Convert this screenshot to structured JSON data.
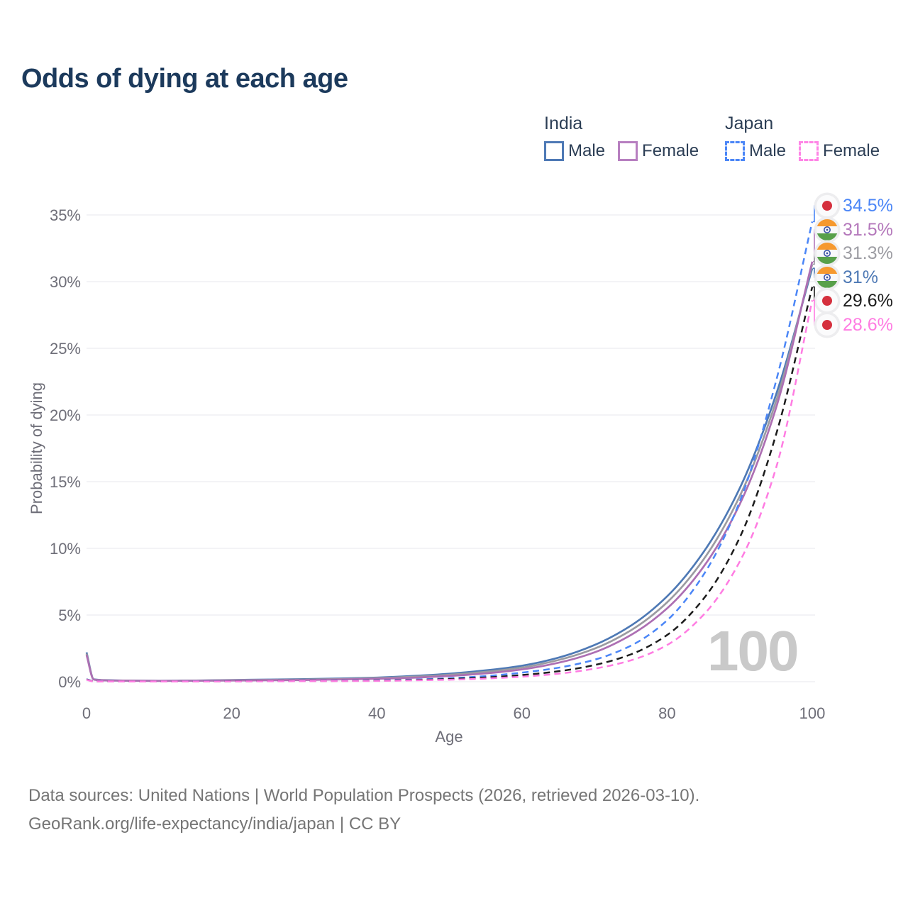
{
  "title": "Odds of dying at each age",
  "watermark": "100",
  "legend": {
    "groups": [
      {
        "id": "india",
        "label": "India",
        "underline_style": "solid",
        "underline_color": "#9a9a9a",
        "items": [
          {
            "id": "india-male",
            "label": "Male",
            "color": "#4e79b5",
            "dashed": false
          },
          {
            "id": "india-female",
            "label": "Female",
            "color": "#b77fc0",
            "dashed": false
          }
        ]
      },
      {
        "id": "japan",
        "label": "Japan",
        "underline_style": "dashed",
        "underline_color": "#111111",
        "items": [
          {
            "id": "japan-male",
            "label": "Male",
            "color": "#4b86f7",
            "dashed": true
          },
          {
            "id": "japan-female",
            "label": "Female",
            "color": "#ff85e6",
            "dashed": true
          }
        ]
      }
    ]
  },
  "footer": {
    "line1": "Data sources: United Nations | World Population Prospects (2026, retrieved 2026-03-10).",
    "line2": "GeoRank.org/life-expectancy/india/japan | CC BY"
  },
  "chart_data": {
    "type": "line",
    "xlabel": "Age",
    "ylabel": "Probability of dying",
    "xlim": [
      0,
      100
    ],
    "ylim": [
      0,
      35
    ],
    "x_ticks": [
      0,
      20,
      40,
      60,
      80,
      100
    ],
    "y_ticks": [
      "0%",
      "5%",
      "10%",
      "15%",
      "20%",
      "25%",
      "30%",
      "35%"
    ],
    "grid": "horizontal",
    "legend_position": "top-right",
    "ages": [
      0,
      1,
      2,
      3,
      5,
      10,
      15,
      20,
      25,
      30,
      35,
      40,
      45,
      50,
      55,
      60,
      65,
      70,
      75,
      80,
      85,
      90,
      95,
      100
    ],
    "series": [
      {
        "name": "India Male",
        "color": "#4e79b5",
        "dashed": false,
        "values": [
          2.2,
          0.18,
          0.13,
          0.11,
          0.09,
          0.07,
          0.09,
          0.13,
          0.16,
          0.19,
          0.24,
          0.31,
          0.43,
          0.6,
          0.85,
          1.2,
          1.8,
          2.75,
          4.2,
          6.4,
          9.7,
          14.5,
          21.5,
          31.0
        ]
      },
      {
        "name": "India Total",
        "color": "#9b9ba1",
        "dashed": false,
        "values": [
          2.1,
          0.17,
          0.12,
          0.1,
          0.085,
          0.065,
          0.08,
          0.11,
          0.14,
          0.16,
          0.2,
          0.27,
          0.37,
          0.52,
          0.74,
          1.06,
          1.62,
          2.48,
          3.85,
          5.95,
          9.15,
          13.9,
          21.0,
          31.3
        ]
      },
      {
        "name": "India Female",
        "color": "#ad6fb3",
        "dashed": false,
        "values": [
          2.0,
          0.16,
          0.11,
          0.09,
          0.08,
          0.06,
          0.07,
          0.09,
          0.11,
          0.13,
          0.17,
          0.22,
          0.3,
          0.43,
          0.62,
          0.92,
          1.42,
          2.2,
          3.5,
          5.5,
          8.6,
          13.3,
          20.5,
          31.5
        ]
      },
      {
        "name": "Japan Male",
        "color": "#4b86f7",
        "dashed": true,
        "values": [
          0.19,
          0.03,
          0.02,
          0.018,
          0.015,
          0.01,
          0.02,
          0.04,
          0.05,
          0.06,
          0.08,
          0.1,
          0.16,
          0.26,
          0.42,
          0.68,
          1.05,
          1.65,
          2.7,
          4.6,
          8.0,
          13.5,
          22.5,
          34.5
        ]
      },
      {
        "name": "Japan Total",
        "color": "#1c1c1c",
        "dashed": true,
        "values": [
          0.17,
          0.025,
          0.018,
          0.015,
          0.012,
          0.009,
          0.015,
          0.03,
          0.04,
          0.05,
          0.06,
          0.08,
          0.13,
          0.2,
          0.32,
          0.5,
          0.78,
          1.25,
          2.05,
          3.5,
          6.2,
          10.8,
          18.5,
          29.6
        ]
      },
      {
        "name": "Japan Female",
        "color": "#ff7ce2",
        "dashed": true,
        "values": [
          0.15,
          0.02,
          0.015,
          0.012,
          0.01,
          0.008,
          0.012,
          0.02,
          0.03,
          0.04,
          0.05,
          0.06,
          0.1,
          0.15,
          0.24,
          0.38,
          0.6,
          0.98,
          1.6,
          2.75,
          5.0,
          9.0,
          16.0,
          28.6
        ]
      }
    ],
    "end_labels": [
      {
        "text": "34.5%",
        "series": "Japan Male",
        "color": "#4b86f7",
        "flag": "japan"
      },
      {
        "text": "31.5%",
        "series": "India Female",
        "color": "#b478bb",
        "flag": "india"
      },
      {
        "text": "31.3%",
        "series": "India Total",
        "color": "#9d9da3",
        "flag": "india"
      },
      {
        "text": "31%",
        "series": "India Male",
        "color": "#4e79b5",
        "flag": "india"
      },
      {
        "text": "29.6%",
        "series": "Japan Total",
        "color": "#1c1c1c",
        "flag": "japan"
      },
      {
        "text": "28.6%",
        "series": "Japan Female",
        "color": "#ff7ce2",
        "flag": "japan"
      }
    ],
    "flag_colors": {
      "japan_red": "#d5303e",
      "india_saffron": "#f6992f",
      "india_green": "#58a04a",
      "india_navy": "#3b53a5"
    }
  }
}
